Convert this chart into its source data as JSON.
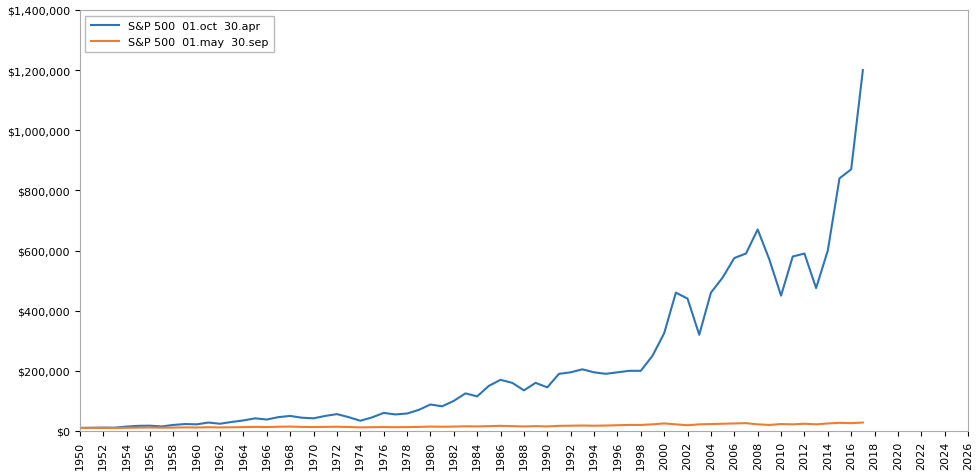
{
  "title": "",
  "line1_label": "S&P 500  01.oct  30.apr",
  "line2_label": "S&P 500  01.may  30.sep",
  "line1_color": "#2E75B6",
  "line2_color": "#ED7D31",
  "xlim": [
    1950,
    2026
  ],
  "ylim": [
    0,
    1400000
  ],
  "yticks": [
    0,
    200000,
    400000,
    600000,
    800000,
    1000000,
    1200000,
    1400000
  ],
  "xticks": [
    1950,
    1952,
    1954,
    1956,
    1958,
    1960,
    1962,
    1964,
    1966,
    1968,
    1970,
    1972,
    1974,
    1976,
    1978,
    1980,
    1982,
    1984,
    1986,
    1988,
    1990,
    1992,
    1994,
    1996,
    1998,
    2000,
    2002,
    2004,
    2006,
    2008,
    2010,
    2012,
    2014,
    2016,
    2018,
    2020,
    2022,
    2024,
    2026
  ],
  "line1_x": [
    1950,
    1951,
    1952,
    1953,
    1954,
    1955,
    1956,
    1957,
    1958,
    1959,
    1960,
    1961,
    1962,
    1963,
    1964,
    1965,
    1966,
    1967,
    1968,
    1969,
    1970,
    1971,
    1972,
    1973,
    1974,
    1975,
    1976,
    1977,
    1978,
    1979,
    1980,
    1981,
    1982,
    1983,
    1984,
    1985,
    1986,
    1987,
    1988,
    1989,
    1990,
    1991,
    1992,
    1993,
    1994,
    1995,
    1996,
    1997,
    1998,
    1999,
    2000,
    2001,
    2002,
    2003,
    2004,
    2005,
    2006,
    2007,
    2008,
    2009,
    2010,
    2011,
    2012,
    2013,
    2014,
    2015,
    2016,
    2017
  ],
  "line1_y": [
    10000,
    10500,
    11200,
    10900,
    14500,
    17000,
    17500,
    15000,
    20000,
    23000,
    22000,
    28000,
    24000,
    30000,
    35000,
    42000,
    38000,
    46000,
    50000,
    44000,
    42000,
    50000,
    56000,
    46000,
    34000,
    45000,
    60000,
    55000,
    58000,
    70000,
    88000,
    82000,
    100000,
    125000,
    115000,
    150000,
    170000,
    160000,
    135000,
    160000,
    145000,
    190000,
    195000,
    205000,
    195000,
    190000,
    195000,
    200000,
    200000,
    250000,
    325000,
    460000,
    440000,
    320000,
    460000,
    510000,
    575000,
    590000,
    670000,
    570000,
    450000,
    580000,
    590000,
    475000,
    600000,
    840000,
    870000,
    1200000
  ],
  "line2_x": [
    1950,
    1951,
    1952,
    1953,
    1954,
    1955,
    1956,
    1957,
    1958,
    1959,
    1960,
    1961,
    1962,
    1963,
    1964,
    1965,
    1966,
    1967,
    1968,
    1969,
    1970,
    1971,
    1972,
    1973,
    1974,
    1975,
    1976,
    1977,
    1978,
    1979,
    1980,
    1981,
    1982,
    1983,
    1984,
    1985,
    1986,
    1987,
    1988,
    1989,
    1990,
    1991,
    1992,
    1993,
    1994,
    1995,
    1996,
    1997,
    1998,
    1999,
    2000,
    2001,
    2002,
    2003,
    2004,
    2005,
    2006,
    2007,
    2008,
    2009,
    2010,
    2011,
    2012,
    2013,
    2014,
    2015,
    2016,
    2017
  ],
  "line2_y": [
    10000,
    10200,
    10100,
    9800,
    10500,
    11000,
    11500,
    10800,
    11200,
    11800,
    11500,
    12500,
    11800,
    12200,
    12800,
    13500,
    13000,
    14000,
    14500,
    13500,
    13000,
    13500,
    14000,
    13200,
    12000,
    12500,
    13000,
    12500,
    12800,
    13500,
    14500,
    14000,
    14500,
    15500,
    15000,
    16000,
    17000,
    16000,
    15000,
    16000,
    15000,
    17000,
    17500,
    18000,
    17500,
    18000,
    19000,
    20000,
    20000,
    22000,
    25000,
    22000,
    19000,
    22000,
    23000,
    24000,
    25000,
    26000,
    22000,
    20000,
    23000,
    22000,
    24000,
    22000,
    25000,
    27000,
    26000,
    28000
  ]
}
